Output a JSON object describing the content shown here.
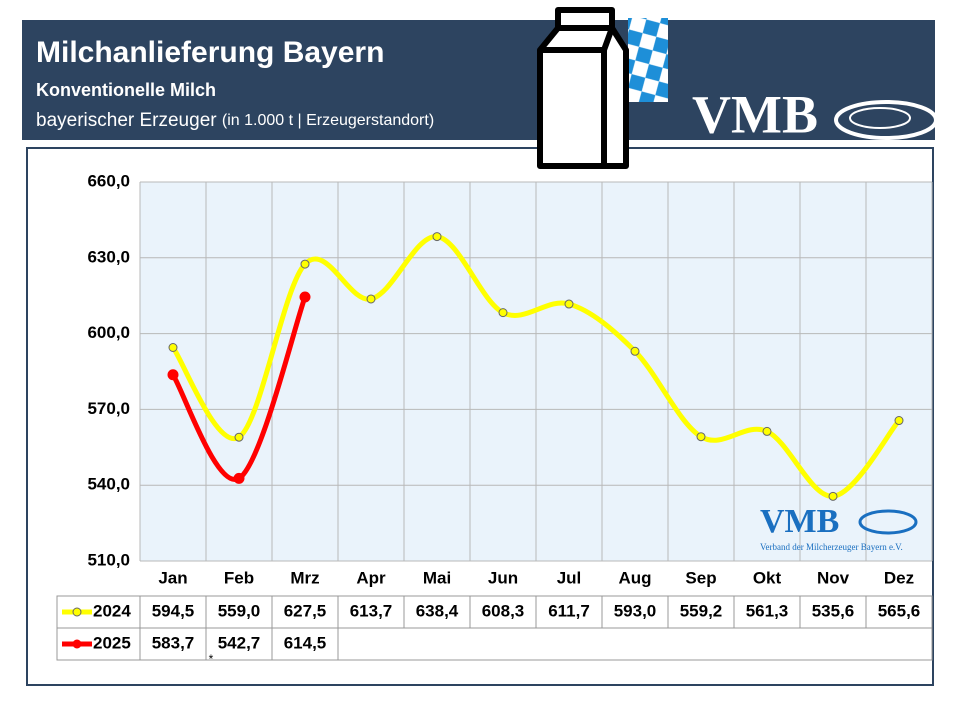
{
  "header": {
    "title": "Milchanlieferung Bayern",
    "subtitle": "Konventionelle Milch",
    "line3": "bayerischer Erzeuger",
    "line3_note": "(in 1.000 t | Erzeugerstandort)"
  },
  "logo": {
    "text": "VMB",
    "small_text": "VMB",
    "small_caption": "Verband der Milcherzeuger Bayern e.V."
  },
  "chart_data": {
    "type": "line",
    "categories": [
      "Jan",
      "Feb",
      "Mrz",
      "Apr",
      "Mai",
      "Jun",
      "Jul",
      "Aug",
      "Sep",
      "Okt",
      "Nov",
      "Dez"
    ],
    "series": [
      {
        "name": "2024",
        "color": "#ffff00",
        "values": [
          594.5,
          559.0,
          627.5,
          613.7,
          638.4,
          608.3,
          611.7,
          593.0,
          559.2,
          561.3,
          535.6,
          565.6
        ],
        "value_labels": [
          "594,5",
          "559,0",
          "627,5",
          "613,7",
          "638,4",
          "608,3",
          "611,7",
          "593,0",
          "559,2",
          "561,3",
          "535,6",
          "565,6"
        ]
      },
      {
        "name": "2025",
        "color": "#ff0000",
        "values": [
          583.7,
          542.7,
          614.5,
          null,
          null,
          null,
          null,
          null,
          null,
          null,
          null,
          null
        ],
        "value_labels": [
          "583,7",
          "542,7",
          "614,5",
          null,
          null,
          null,
          null,
          null,
          null,
          null,
          null,
          null
        ]
      }
    ],
    "ylim": [
      510,
      660
    ],
    "yticks": [
      {
        "value": 510,
        "label": "510,0"
      },
      {
        "value": 540,
        "label": "540,0"
      },
      {
        "value": 570,
        "label": "570,0"
      },
      {
        "value": 600,
        "label": "600,0"
      },
      {
        "value": 630,
        "label": "630,0"
      },
      {
        "value": 660,
        "label": "660,0"
      }
    ],
    "grid": true,
    "annotation": "*"
  }
}
